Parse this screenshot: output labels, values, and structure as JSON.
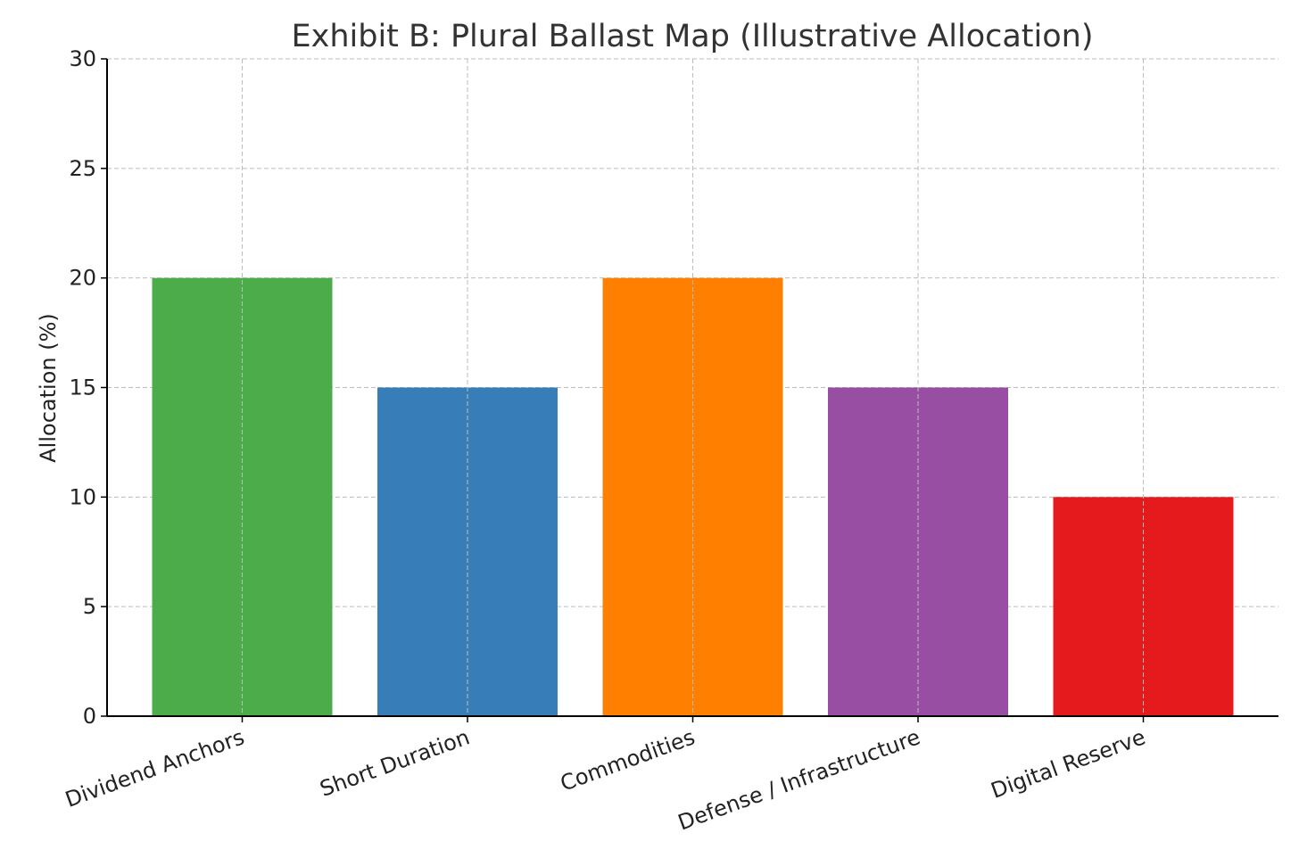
{
  "chart_data": {
    "type": "bar",
    "title": "Exhibit B: Plural Ballast Map (Illustrative Allocation)",
    "xlabel": "",
    "ylabel": "Allocation (%)",
    "categories": [
      "Dividend Anchors",
      "Short Duration",
      "Commodities",
      "Defense / Infrastructure",
      "Digital Reserve"
    ],
    "values": [
      20,
      15,
      20,
      15,
      10
    ],
    "colors": [
      "#4dac4a",
      "#377eb8",
      "#ff7f00",
      "#984ea3",
      "#e41a1c"
    ],
    "ylim": [
      0,
      30
    ],
    "yticks": [
      0,
      5,
      10,
      15,
      20,
      25,
      30
    ],
    "grid": true,
    "legend": "none"
  }
}
